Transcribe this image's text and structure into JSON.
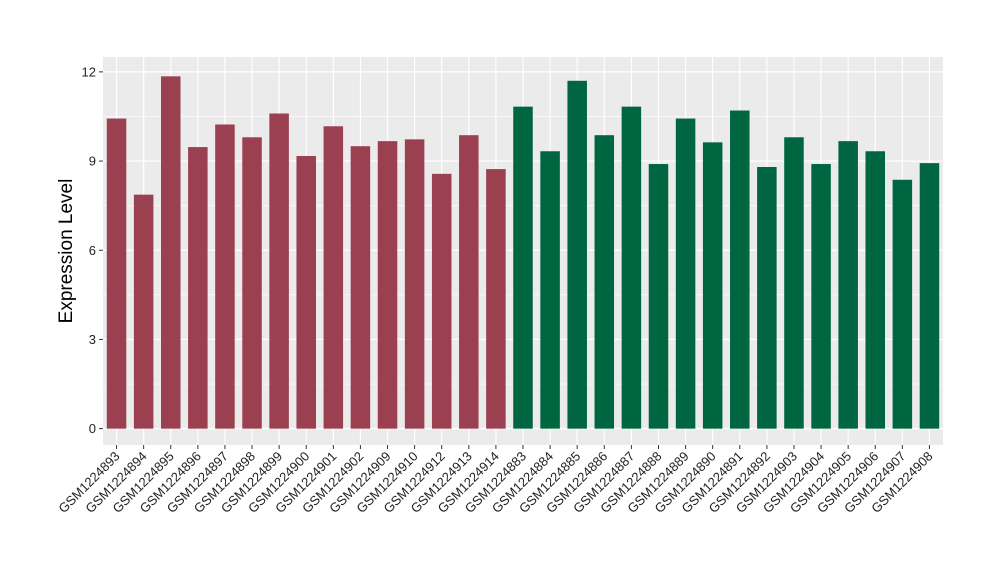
{
  "chart_data": {
    "type": "bar",
    "ylabel": "Expression Level",
    "xlabel": "",
    "ylim": [
      -0.55,
      12.5
    ],
    "yticks": [
      0,
      3,
      6,
      9,
      12
    ],
    "grid": true,
    "categories": [
      "GSM1224893",
      "GSM1224894",
      "GSM1224895",
      "GSM1224896",
      "GSM1224897",
      "GSM1224898",
      "GSM1224899",
      "GSM1224900",
      "GSM1224901",
      "GSM1224902",
      "GSM1224909",
      "GSM1224910",
      "GSM1224912",
      "GSM1224913",
      "GSM1224914",
      "GSM1224883",
      "GSM1224884",
      "GSM1224885",
      "GSM1224886",
      "GSM1224887",
      "GSM1224888",
      "GSM1224889",
      "GSM1224890",
      "GSM1224891",
      "GSM1224892",
      "GSM1224903",
      "GSM1224904",
      "GSM1224905",
      "GSM1224906",
      "GSM1224907",
      "GSM1224908"
    ],
    "values": [
      10.43,
      7.87,
      11.85,
      9.47,
      10.23,
      9.8,
      10.6,
      9.17,
      10.17,
      9.5,
      9.67,
      9.73,
      8.57,
      9.87,
      8.73,
      10.83,
      9.33,
      11.7,
      9.87,
      10.83,
      8.9,
      10.43,
      9.63,
      10.7,
      8.8,
      9.8,
      8.9,
      9.67,
      9.33,
      8.37,
      8.93
    ],
    "groups": [
      0,
      0,
      0,
      0,
      0,
      0,
      0,
      0,
      0,
      0,
      0,
      0,
      0,
      0,
      0,
      1,
      1,
      1,
      1,
      1,
      1,
      1,
      1,
      1,
      1,
      1,
      1,
      1,
      1,
      1,
      1
    ],
    "group_colors": [
      "#9b4050",
      "#006641"
    ],
    "background_color": "#ebebeb"
  }
}
